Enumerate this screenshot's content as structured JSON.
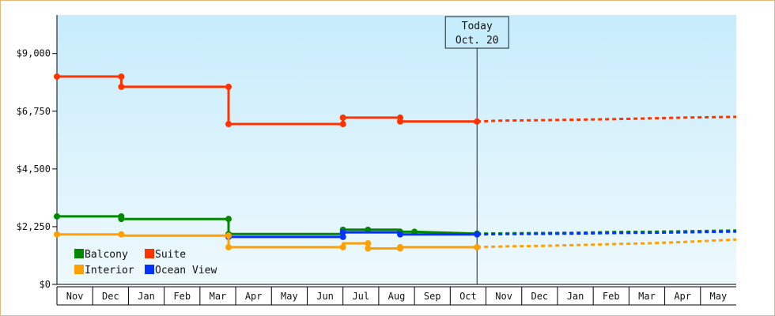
{
  "chart_data": {
    "type": "line",
    "title": "",
    "xlabel": "",
    "ylabel": "",
    "x_ticks": [
      "Nov",
      "Dec",
      "Jan",
      "Feb",
      "Mar",
      "Apr",
      "May",
      "Jun",
      "Jul",
      "Aug",
      "Sep",
      "Oct",
      "Nov",
      "Dec",
      "Jan",
      "Feb",
      "Mar",
      "Apr",
      "May"
    ],
    "y_ticks": [
      {
        "value": 0,
        "label": "$0"
      },
      {
        "value": 2250,
        "label": "$2,250"
      },
      {
        "value": 4500,
        "label": "$4,500"
      },
      {
        "value": 6750,
        "label": "$6,750"
      },
      {
        "value": 9000,
        "label": "$9,000"
      }
    ],
    "xlim": [
      -0.5,
      18.5
    ],
    "ylim": [
      0,
      10500
    ],
    "grid": false,
    "legend_position": "bottom-left",
    "today_marker": {
      "x": 11.25,
      "line1": "Today",
      "line2": "Oct. 20"
    },
    "series": [
      {
        "name": "Suite",
        "color": "#ff3300",
        "historical": [
          [
            -0.5,
            8100
          ],
          [
            1.3,
            8100
          ],
          [
            1.3,
            7700
          ],
          [
            4.3,
            7700
          ],
          [
            4.3,
            6250
          ],
          [
            7.5,
            6250
          ],
          [
            7.5,
            6500
          ],
          [
            9.1,
            6500
          ],
          [
            9.1,
            6350
          ],
          [
            11.25,
            6350
          ]
        ],
        "markers": [
          [
            -0.5,
            8100
          ],
          [
            1.3,
            8100
          ],
          [
            1.3,
            7700
          ],
          [
            4.3,
            7700
          ],
          [
            4.3,
            6250
          ],
          [
            7.5,
            6250
          ],
          [
            7.5,
            6500
          ],
          [
            9.1,
            6500
          ],
          [
            9.1,
            6350
          ],
          [
            11.25,
            6350
          ]
        ],
        "forecast": [
          [
            11.25,
            6350
          ],
          [
            11.8,
            6380
          ],
          [
            13.0,
            6400
          ],
          [
            14.0,
            6420
          ],
          [
            15.0,
            6440
          ],
          [
            16.0,
            6470
          ],
          [
            17.0,
            6500
          ],
          [
            18.5,
            6530
          ]
        ]
      },
      {
        "name": "Balcony",
        "color": "#008800",
        "historical": [
          [
            -0.5,
            2650
          ],
          [
            1.3,
            2650
          ],
          [
            1.3,
            2550
          ],
          [
            4.3,
            2550
          ],
          [
            4.3,
            1960
          ],
          [
            7.5,
            1960
          ],
          [
            7.5,
            2130
          ],
          [
            8.2,
            2130
          ],
          [
            8.2,
            2130
          ],
          [
            9.1,
            2130
          ],
          [
            9.1,
            2050
          ],
          [
            9.5,
            2050
          ],
          [
            9.5,
            2050
          ],
          [
            11.25,
            1980
          ]
        ],
        "markers": [
          [
            -0.5,
            2650
          ],
          [
            1.3,
            2650
          ],
          [
            1.3,
            2550
          ],
          [
            4.3,
            2550
          ],
          [
            4.3,
            1960
          ],
          [
            7.5,
            2130
          ],
          [
            8.2,
            2130
          ],
          [
            9.1,
            2050
          ],
          [
            9.5,
            2050
          ],
          [
            11.25,
            1980
          ]
        ],
        "forecast": [
          [
            11.25,
            1980
          ],
          [
            12.0,
            1990
          ],
          [
            13.0,
            2000
          ],
          [
            14.0,
            2010
          ],
          [
            15.0,
            2040
          ],
          [
            16.0,
            2050
          ],
          [
            17.0,
            2070
          ],
          [
            18.5,
            2100
          ]
        ]
      },
      {
        "name": "Ocean View",
        "color": "#0033ff",
        "historical": [
          [
            4.3,
            1850
          ],
          [
            7.5,
            1850
          ],
          [
            7.5,
            2030
          ],
          [
            9.1,
            2030
          ],
          [
            9.1,
            1950
          ],
          [
            11.25,
            1950
          ]
        ],
        "markers": [
          [
            4.3,
            1850
          ],
          [
            7.5,
            1850
          ],
          [
            7.5,
            2030
          ],
          [
            9.1,
            1950
          ],
          [
            11.25,
            1950
          ]
        ],
        "forecast": [
          [
            11.25,
            1950
          ],
          [
            12.0,
            1960
          ],
          [
            13.0,
            1970
          ],
          [
            14.0,
            1980
          ],
          [
            15.0,
            2000
          ],
          [
            16.0,
            2010
          ],
          [
            17.0,
            2030
          ],
          [
            18.5,
            2060
          ]
        ]
      },
      {
        "name": "Interior",
        "color": "#ffa000",
        "historical": [
          [
            -0.5,
            1950
          ],
          [
            1.3,
            1950
          ],
          [
            1.3,
            1900
          ],
          [
            4.3,
            1900
          ],
          [
            4.3,
            1450
          ],
          [
            7.5,
            1450
          ],
          [
            7.5,
            1600
          ],
          [
            8.2,
            1600
          ],
          [
            8.2,
            1400
          ],
          [
            9.1,
            1400
          ],
          [
            9.1,
            1450
          ],
          [
            11.25,
            1450
          ]
        ],
        "markers": [
          [
            -0.5,
            1950
          ],
          [
            1.3,
            1950
          ],
          [
            4.3,
            1900
          ],
          [
            4.3,
            1450
          ],
          [
            7.5,
            1450
          ],
          [
            8.2,
            1600
          ],
          [
            8.2,
            1400
          ],
          [
            9.1,
            1400
          ],
          [
            9.1,
            1450
          ],
          [
            11.25,
            1450
          ]
        ],
        "forecast": [
          [
            11.25,
            1450
          ],
          [
            12.0,
            1480
          ],
          [
            13.0,
            1500
          ],
          [
            14.0,
            1530
          ],
          [
            15.0,
            1570
          ],
          [
            16.0,
            1600
          ],
          [
            17.0,
            1650
          ],
          [
            18.5,
            1750
          ]
        ]
      }
    ],
    "legend": [
      {
        "name": "Balcony",
        "color": "#008800"
      },
      {
        "name": "Suite",
        "color": "#ff3300"
      },
      {
        "name": "Interior",
        "color": "#ffa000"
      },
      {
        "name": "Ocean View",
        "color": "#0033ff"
      }
    ]
  }
}
